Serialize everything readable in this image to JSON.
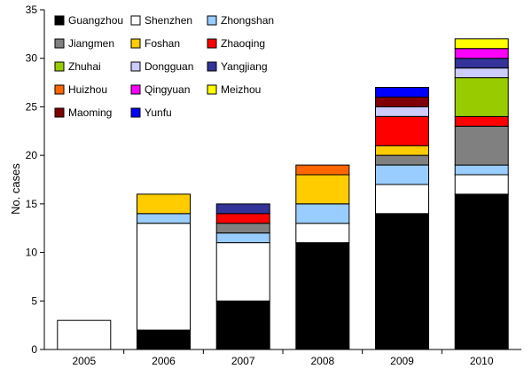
{
  "chart_data": {
    "type": "bar",
    "stacked": true,
    "title": "",
    "xlabel": "",
    "ylabel": "No. cases",
    "ylim": [
      0,
      35
    ],
    "yticks": [
      0,
      5,
      10,
      15,
      20,
      25,
      30,
      35
    ],
    "grid": false,
    "legend_position": "top-left",
    "categories": [
      "2005",
      "2006",
      "2007",
      "2008",
      "2009",
      "2010"
    ],
    "series": [
      {
        "name": "Guangzhou",
        "color": "#000000",
        "values": [
          0,
          2,
          5,
          11,
          14,
          16
        ]
      },
      {
        "name": "Shenzhen",
        "color": "#ffffff",
        "values": [
          3,
          11,
          6,
          2,
          3,
          2
        ]
      },
      {
        "name": "Zhongshan",
        "color": "#99ccff",
        "values": [
          0,
          1,
          1,
          2,
          2,
          1
        ]
      },
      {
        "name": "Jiangmen",
        "color": "#808080",
        "values": [
          0,
          0,
          1,
          0,
          1,
          4
        ]
      },
      {
        "name": "Foshan",
        "color": "#ffcc00",
        "values": [
          0,
          2,
          0,
          3,
          1,
          0
        ]
      },
      {
        "name": "Zhaoqing",
        "color": "#ff0000",
        "values": [
          0,
          0,
          1,
          0,
          3,
          1
        ]
      },
      {
        "name": "Zhuhai",
        "color": "#99cc00",
        "values": [
          0,
          0,
          0,
          0,
          0,
          4
        ]
      },
      {
        "name": "Dongguan",
        "color": "#ccccff",
        "values": [
          0,
          0,
          0,
          0,
          1,
          1
        ]
      },
      {
        "name": "Yangjiang",
        "color": "#333399",
        "values": [
          0,
          0,
          1,
          0,
          0,
          1
        ]
      },
      {
        "name": "Huizhou",
        "color": "#ff6600",
        "values": [
          0,
          0,
          0,
          1,
          0,
          0
        ]
      },
      {
        "name": "Qingyuan",
        "color": "#ff00ff",
        "values": [
          0,
          0,
          0,
          0,
          0,
          1
        ]
      },
      {
        "name": "Meizhou",
        "color": "#ffff00",
        "values": [
          0,
          0,
          0,
          0,
          0,
          1
        ]
      },
      {
        "name": "Maoming",
        "color": "#800000",
        "values": [
          0,
          0,
          0,
          0,
          1,
          0
        ]
      },
      {
        "name": "Yunfu",
        "color": "#0000ff",
        "values": [
          0,
          0,
          0,
          0,
          1,
          0
        ]
      }
    ]
  }
}
